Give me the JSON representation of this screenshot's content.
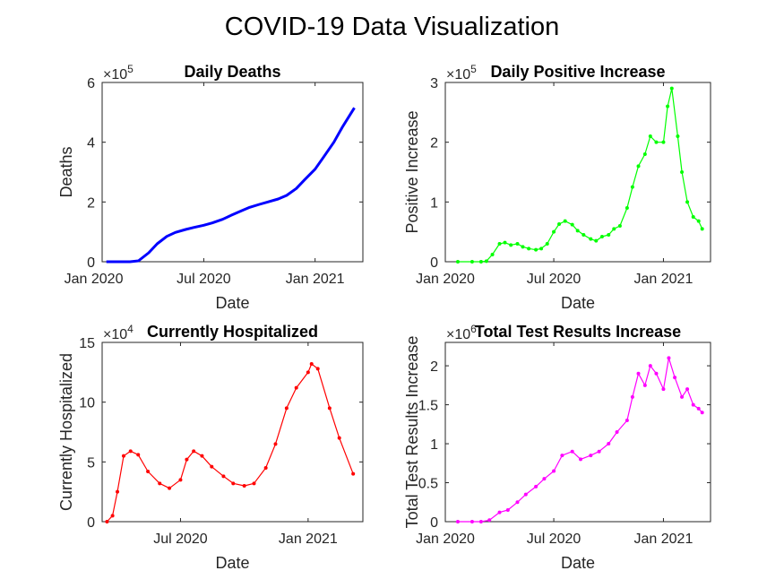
{
  "figure_title": "COVID-19 Data Visualization",
  "chart_data": [
    {
      "type": "line",
      "title": "Daily Deaths",
      "xlabel": "Date",
      "ylabel": "Deaths",
      "color": "#0000ff",
      "exponent_label": "×10",
      "exponent": "5",
      "xlim": [
        "2020-01-15",
        "2021-03-21"
      ],
      "ylim": [
        0,
        6
      ],
      "x_ticks": [
        {
          "date": "2020-01-01",
          "label": "Jan 2020"
        },
        {
          "date": "2020-07-01",
          "label": "Jul 2020"
        },
        {
          "date": "2021-01-01",
          "label": "Jan 2021"
        }
      ],
      "y_ticks": [
        {
          "v": 0,
          "label": "0"
        },
        {
          "v": 2,
          "label": "2"
        },
        {
          "v": 4,
          "label": "4"
        },
        {
          "v": 6,
          "label": "6"
        }
      ],
      "markers": false,
      "series": [
        {
          "x": [
            "2020-01-22",
            "2020-03-01",
            "2020-03-15",
            "2020-04-01",
            "2020-04-15",
            "2020-05-01",
            "2020-05-15",
            "2020-06-01",
            "2020-06-15",
            "2020-07-01",
            "2020-07-15",
            "2020-08-01",
            "2020-08-15",
            "2020-09-01",
            "2020-09-15",
            "2020-10-01",
            "2020-10-15",
            "2020-11-01",
            "2020-11-15",
            "2020-12-01",
            "2020-12-15",
            "2021-01-01",
            "2021-01-15",
            "2021-02-01",
            "2021-02-15",
            "2021-03-07"
          ],
          "y": [
            0,
            0,
            0.03,
            0.3,
            0.6,
            0.85,
            0.98,
            1.08,
            1.15,
            1.22,
            1.3,
            1.42,
            1.55,
            1.7,
            1.82,
            1.92,
            2.0,
            2.1,
            2.22,
            2.45,
            2.75,
            3.1,
            3.5,
            4.0,
            4.5,
            5.15
          ]
        }
      ]
    },
    {
      "type": "line",
      "title": "Daily Positive Increase",
      "xlabel": "Date",
      "ylabel": "Positive Increase",
      "color": "#00ff00",
      "exponent_label": "×10",
      "exponent": "5",
      "xlim": [
        "2020-01-01",
        "2021-03-21"
      ],
      "ylim": [
        0,
        3
      ],
      "x_ticks": [
        {
          "date": "2020-01-01",
          "label": "Jan 2020"
        },
        {
          "date": "2020-07-01",
          "label": "Jul 2020"
        },
        {
          "date": "2021-01-01",
          "label": "Jan 2021"
        }
      ],
      "y_ticks": [
        {
          "v": 0,
          "label": "0"
        },
        {
          "v": 1,
          "label": "1"
        },
        {
          "v": 2,
          "label": "2"
        },
        {
          "v": 3,
          "label": "3"
        }
      ],
      "markers": true,
      "series": [
        {
          "x": [
            "2020-01-22",
            "2020-02-15",
            "2020-03-01",
            "2020-03-10",
            "2020-03-20",
            "2020-04-01",
            "2020-04-10",
            "2020-04-20",
            "2020-05-01",
            "2020-05-10",
            "2020-05-20",
            "2020-06-01",
            "2020-06-10",
            "2020-06-20",
            "2020-07-01",
            "2020-07-10",
            "2020-07-20",
            "2020-08-01",
            "2020-08-10",
            "2020-08-20",
            "2020-09-01",
            "2020-09-10",
            "2020-09-20",
            "2020-10-01",
            "2020-10-10",
            "2020-10-20",
            "2020-11-01",
            "2020-11-10",
            "2020-11-20",
            "2020-12-01",
            "2020-12-10",
            "2020-12-20",
            "2021-01-01",
            "2021-01-08",
            "2021-01-15",
            "2021-01-25",
            "2021-02-01",
            "2021-02-10",
            "2021-02-20",
            "2021-03-01",
            "2021-03-07"
          ],
          "y": [
            0,
            0,
            0,
            0.01,
            0.12,
            0.3,
            0.32,
            0.28,
            0.3,
            0.25,
            0.22,
            0.2,
            0.22,
            0.3,
            0.5,
            0.63,
            0.68,
            0.62,
            0.52,
            0.45,
            0.38,
            0.35,
            0.42,
            0.45,
            0.55,
            0.6,
            0.9,
            1.25,
            1.6,
            1.8,
            2.1,
            2.0,
            2.0,
            2.6,
            2.9,
            2.1,
            1.5,
            1.0,
            0.75,
            0.68,
            0.55
          ]
        }
      ]
    },
    {
      "type": "line",
      "title": "Currently Hospitalized",
      "xlabel": "Date",
      "ylabel": "Currently Hospitalized",
      "color": "#ff0000",
      "exponent_label": "×10",
      "exponent": "4",
      "xlim": [
        "2020-03-10",
        "2021-03-21"
      ],
      "ylim": [
        0,
        15
      ],
      "x_ticks": [
        {
          "date": "2020-07-01",
          "label": "Jul 2020"
        },
        {
          "date": "2021-01-01",
          "label": "Jan 2021"
        }
      ],
      "y_ticks": [
        {
          "v": 0,
          "label": "0"
        },
        {
          "v": 5,
          "label": "5"
        },
        {
          "v": 10,
          "label": "10"
        },
        {
          "v": 15,
          "label": "15"
        }
      ],
      "markers": true,
      "series": [
        {
          "x": [
            "2020-03-17",
            "2020-03-25",
            "2020-04-01",
            "2020-04-10",
            "2020-04-20",
            "2020-05-01",
            "2020-05-15",
            "2020-06-01",
            "2020-06-15",
            "2020-07-01",
            "2020-07-10",
            "2020-07-20",
            "2020-08-01",
            "2020-08-15",
            "2020-09-01",
            "2020-09-15",
            "2020-10-01",
            "2020-10-15",
            "2020-11-01",
            "2020-11-15",
            "2020-12-01",
            "2020-12-15",
            "2021-01-01",
            "2021-01-06",
            "2021-01-15",
            "2021-02-01",
            "2021-02-15",
            "2021-03-07"
          ],
          "y": [
            0,
            0.5,
            2.5,
            5.5,
            5.9,
            5.6,
            4.2,
            3.2,
            2.8,
            3.5,
            5.2,
            5.9,
            5.5,
            4.6,
            3.8,
            3.2,
            3.0,
            3.2,
            4.5,
            6.5,
            9.5,
            11.2,
            12.5,
            13.2,
            12.8,
            9.5,
            7.0,
            4.0
          ]
        }
      ]
    },
    {
      "type": "line",
      "title": "Total Test Results Increase",
      "xlabel": "Date",
      "ylabel": "Total Test Results Increase",
      "color": "#ff00ff",
      "exponent_label": "×10",
      "exponent": "6",
      "xlim": [
        "2020-01-01",
        "2021-03-21"
      ],
      "ylim": [
        0,
        2.3
      ],
      "x_ticks": [
        {
          "date": "2020-01-01",
          "label": "Jan 2020"
        },
        {
          "date": "2020-07-01",
          "label": "Jul 2020"
        },
        {
          "date": "2021-01-01",
          "label": "Jan 2021"
        }
      ],
      "y_ticks": [
        {
          "v": 0,
          "label": "0"
        },
        {
          "v": 0.5,
          "label": "0.5"
        },
        {
          "v": 1,
          "label": "1"
        },
        {
          "v": 1.5,
          "label": "1.5"
        },
        {
          "v": 2,
          "label": "2"
        }
      ],
      "markers": true,
      "series": [
        {
          "x": [
            "2020-01-22",
            "2020-02-15",
            "2020-03-01",
            "2020-03-15",
            "2020-04-01",
            "2020-04-15",
            "2020-05-01",
            "2020-05-15",
            "2020-06-01",
            "2020-06-15",
            "2020-07-01",
            "2020-07-15",
            "2020-08-01",
            "2020-08-15",
            "2020-09-01",
            "2020-09-15",
            "2020-10-01",
            "2020-10-15",
            "2020-11-01",
            "2020-11-10",
            "2020-11-20",
            "2020-12-01",
            "2020-12-10",
            "2020-12-20",
            "2021-01-01",
            "2021-01-10",
            "2021-01-20",
            "2021-02-01",
            "2021-02-10",
            "2021-02-20",
            "2021-03-01",
            "2021-03-07"
          ],
          "y": [
            0,
            0,
            0,
            0.02,
            0.12,
            0.15,
            0.25,
            0.35,
            0.45,
            0.55,
            0.65,
            0.85,
            0.9,
            0.8,
            0.85,
            0.9,
            1.0,
            1.15,
            1.3,
            1.6,
            1.9,
            1.75,
            2.0,
            1.9,
            1.7,
            2.1,
            1.85,
            1.6,
            1.7,
            1.5,
            1.45,
            1.4
          ]
        }
      ]
    }
  ]
}
